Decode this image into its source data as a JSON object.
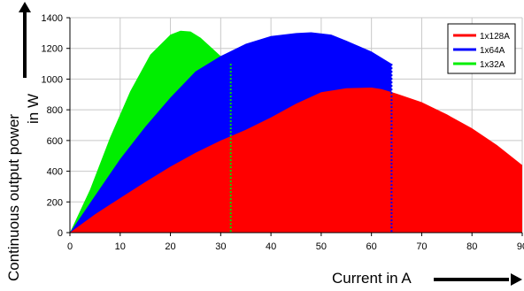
{
  "chart_data": {
    "type": "area",
    "title": "",
    "xlabel": "Current in A",
    "ylabel_line1": "Continuous output power",
    "ylabel_line2": "in W",
    "xlim": [
      0,
      90
    ],
    "ylim": [
      0,
      1400
    ],
    "x_ticks": [
      "0",
      "10",
      "20",
      "30",
      "40",
      "50",
      "60",
      "70",
      "80",
      "90"
    ],
    "y_ticks": [
      "0",
      "200",
      "400",
      "600",
      "800",
      "1000",
      "1200",
      "1400"
    ],
    "y_tick_values": [
      0,
      200,
      400,
      600,
      800,
      1000,
      1200,
      1400
    ],
    "x_tick_values": [
      0,
      10,
      20,
      30,
      40,
      50,
      60,
      70,
      80,
      90
    ],
    "grid": true,
    "legend_position": "top-right",
    "series": [
      {
        "name": "1x128A",
        "color": "#ff0000",
        "x": [
          0,
          5,
          10,
          15,
          20,
          25,
          30,
          35,
          40,
          45,
          50,
          55,
          60,
          62,
          65,
          70,
          75,
          80,
          85,
          90
        ],
        "y": [
          0,
          120,
          225,
          330,
          430,
          520,
          600,
          670,
          750,
          840,
          915,
          940,
          945,
          935,
          905,
          850,
          770,
          680,
          570,
          440
        ]
      },
      {
        "name": "1x64A",
        "color": "#0000ff",
        "x": [
          0,
          5,
          10,
          15,
          20,
          25,
          30,
          35,
          40,
          45,
          48,
          52,
          55,
          60,
          64
        ],
        "y": [
          0,
          240,
          480,
          690,
          880,
          1050,
          1150,
          1230,
          1280,
          1300,
          1305,
          1290,
          1250,
          1180,
          1100
        ]
      },
      {
        "name": "1x32A",
        "color": "#00ee00",
        "x": [
          0,
          4,
          8,
          12,
          16,
          20,
          22,
          24,
          26,
          28,
          30,
          32
        ],
        "y": [
          0,
          280,
          620,
          920,
          1160,
          1290,
          1315,
          1310,
          1270,
          1210,
          1150,
          1100
        ]
      }
    ],
    "markers": [
      {
        "x": 32,
        "color": "#00dd00"
      },
      {
        "x": 64,
        "color": "#0000ff"
      }
    ]
  }
}
